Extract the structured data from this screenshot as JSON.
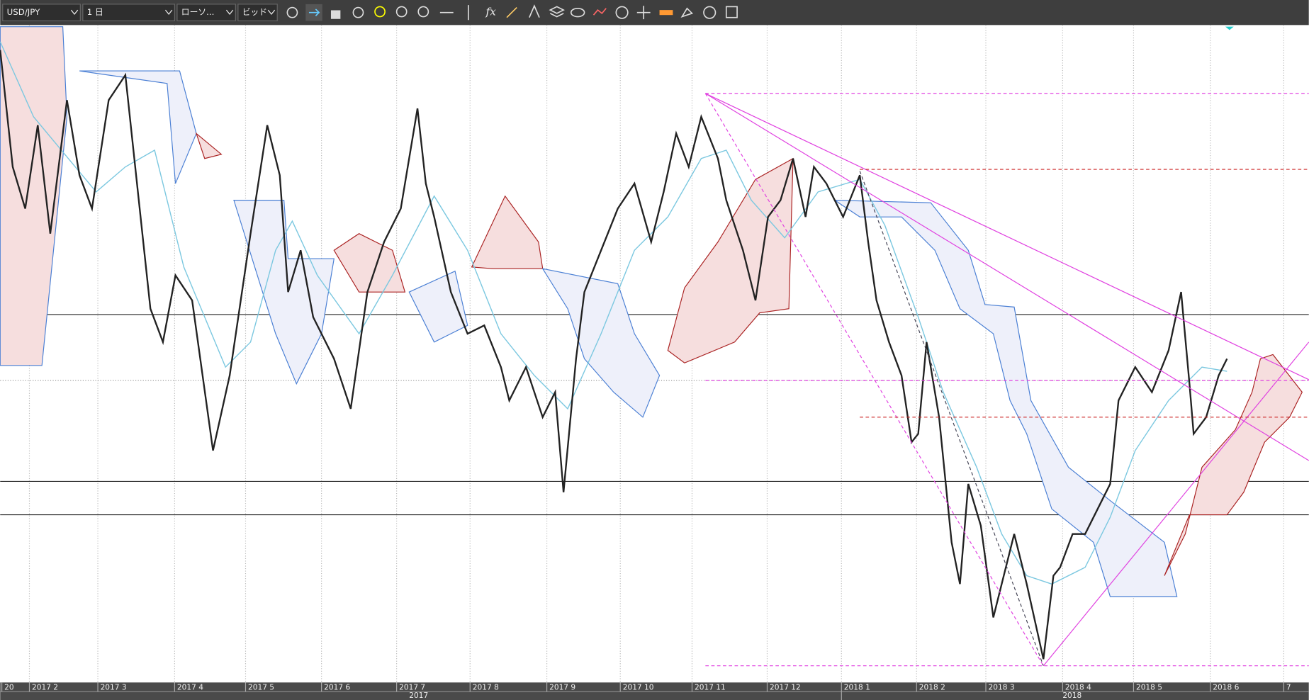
{
  "toolbar": {
    "selects": [
      "USD/JPY",
      "1 日",
      "ローソ...",
      "ビッド"
    ],
    "fx": "fx"
  },
  "axis": {
    "months": [
      "20",
      "2017 2",
      "2017 3",
      "2017 4",
      "2017 5",
      "2017 6",
      "2017 7",
      "2017 8",
      "2017 9",
      "2017 10",
      "2017 11",
      "2017 12",
      "2018 1",
      "2018 2",
      "2018 3",
      "2018 4",
      "2018 5",
      "2018 6",
      "7"
    ],
    "years": [
      "2017",
      "2018"
    ]
  }
}
